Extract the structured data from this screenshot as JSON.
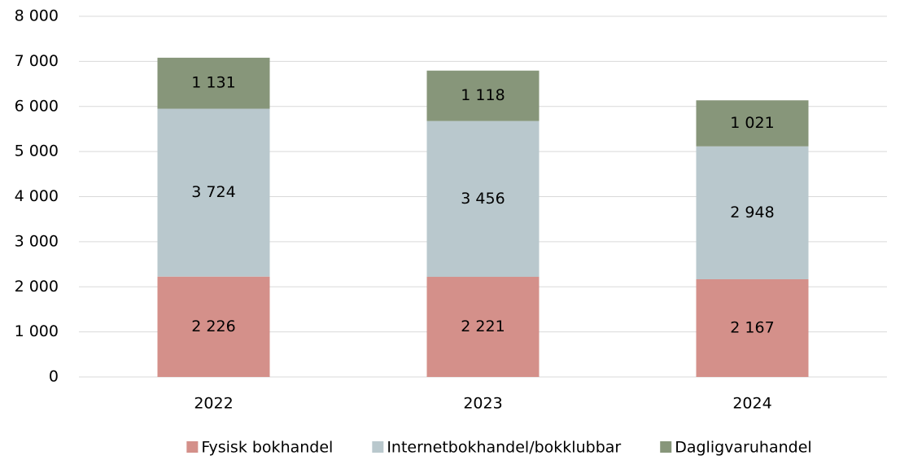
{
  "chart_data": {
    "type": "bar",
    "stacked": true,
    "categories": [
      "2022",
      "2023",
      "2024"
    ],
    "series": [
      {
        "name": "Fysisk bokhandel",
        "color": "#d4908a",
        "values": [
          2226,
          2221,
          2167
        ],
        "value_labels": [
          "2 226",
          "2 221",
          "2 167"
        ]
      },
      {
        "name": "Internetbokhandel/bokklubbar",
        "color": "#b9c8cd",
        "values": [
          3724,
          3456,
          2948
        ],
        "value_labels": [
          "3 724",
          "3 456",
          "2 948"
        ]
      },
      {
        "name": "Dagligvaruhandel",
        "color": "#87967a",
        "values": [
          1131,
          1118,
          1021
        ],
        "value_labels": [
          "1 131",
          "1 118",
          "1 021"
        ]
      }
    ],
    "ylim": [
      0,
      8000
    ],
    "yticks": [
      0,
      {
        "value": 1000,
        "label": "1 000"
      },
      {
        "value": 2000,
        "label": "2 000"
      },
      {
        "value": 3000,
        "label": "3 000"
      },
      {
        "value": 4000,
        "label": "4 000"
      },
      {
        "value": 5000,
        "label": "5 000"
      },
      {
        "value": 6000,
        "label": "6 000"
      },
      {
        "value": 7000,
        "label": "7 000"
      },
      {
        "value": 8000,
        "label": "8 000"
      }
    ],
    "grid": true,
    "legend": "bottom"
  }
}
